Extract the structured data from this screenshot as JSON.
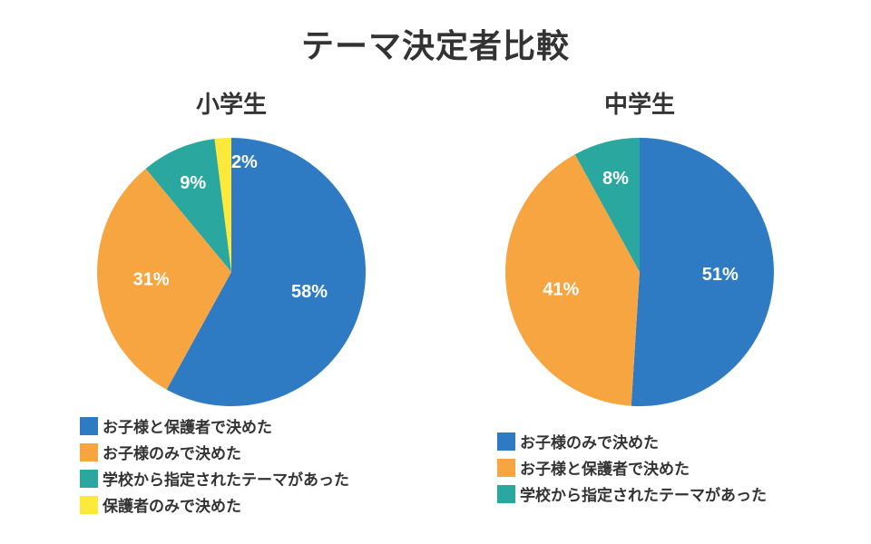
{
  "title": "テーマ決定者比較",
  "chart_data": [
    {
      "type": "pie",
      "title": "小学生",
      "unit": "%",
      "slices": [
        {
          "label": "お子様と保護者で決めた",
          "value": 58,
          "color": "#2e7bc4"
        },
        {
          "label": "お子様のみで決めた",
          "value": 31,
          "color": "#f7a541"
        },
        {
          "label": "学校から指定されたテーマがあった",
          "value": 9,
          "color": "#2aa79e"
        },
        {
          "label": "保護者のみで決めた",
          "value": 2,
          "color": "#fce93a"
        }
      ]
    },
    {
      "type": "pie",
      "title": "中学生",
      "unit": "%",
      "slices": [
        {
          "label": "お子様のみで決めた",
          "value": 51,
          "color": "#2e7bc4"
        },
        {
          "label": "お子様と保護者で決めた",
          "value": 41,
          "color": "#f7a541"
        },
        {
          "label": "学校から指定されたテーマがあった",
          "value": 8,
          "color": "#2aa79e"
        }
      ]
    }
  ]
}
